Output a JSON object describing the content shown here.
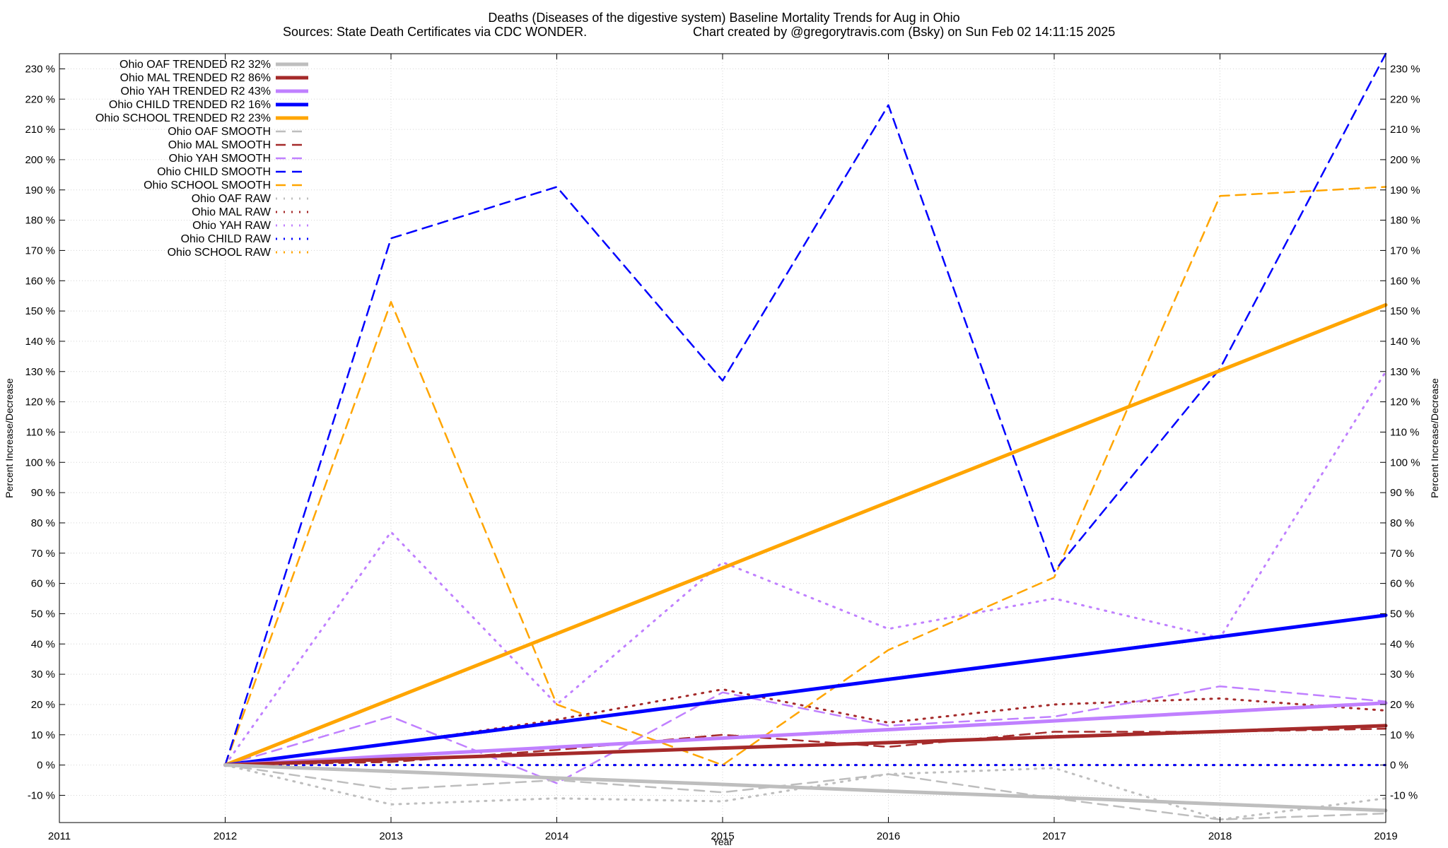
{
  "chart_data": {
    "type": "line",
    "title": "Deaths (Diseases of the digestive system)  Baseline Mortality Trends for Aug in Ohio",
    "subtitle_left": "Sources: State Death Certificates via CDC WONDER.",
    "subtitle_right": "Chart created by @gregorytravis.com (Bsky) on Sun Feb 02 14:11:15 2025",
    "xlabel": "Year",
    "ylabel": "Percent Increase/Decrease",
    "y2label": "Percent Increase/Decrease",
    "xlim": [
      2011,
      2019
    ],
    "ylim": [
      -19,
      235
    ],
    "x_ticks": [
      "2011",
      "2012",
      "2013",
      "2014",
      "2015",
      "2016",
      "2017",
      "2018",
      "2019"
    ],
    "y_ticks": [
      "-10 %",
      "0 %",
      "10 %",
      "20 %",
      "30 %",
      "40 %",
      "50 %",
      "60 %",
      "70 %",
      "80 %",
      "90 %",
      "100 %",
      "110 %",
      "120 %",
      "130 %",
      "140 %",
      "150 %",
      "160 %",
      "170 %",
      "180 %",
      "190 %",
      "200 %",
      "210 %",
      "220 %",
      "230 %"
    ],
    "grid": true,
    "legend_position": "top-left",
    "x": [
      2012,
      2013,
      2014,
      2015,
      2016,
      2017,
      2018,
      2019
    ],
    "series": [
      {
        "name": "Ohio OAF TRENDED R2  32%",
        "style": "trend",
        "color": "#bebebe",
        "values": [
          0,
          -2.1,
          -4.3,
          -6.4,
          -8.6,
          -10.7,
          -12.9,
          -15.0
        ],
        "legend": "Ohio OAF TRENDED R2  32%"
      },
      {
        "name": "Ohio MAL TRENDED R2  86%",
        "style": "trend",
        "color": "#a52a2a",
        "values": [
          0,
          1.9,
          3.7,
          5.6,
          7.4,
          9.3,
          11.1,
          13.0
        ]
      },
      {
        "name": "Ohio YAH TRENDED R2  43%",
        "style": "trend",
        "color": "#c080ff",
        "values": [
          0,
          3.0,
          5.9,
          8.9,
          11.7,
          14.6,
          17.6,
          20.5
        ]
      },
      {
        "name": "Ohio CHILD TRENDED R2  16%",
        "style": "trend",
        "color": "#0000ff",
        "values": [
          0,
          7.1,
          14.1,
          21.2,
          28.3,
          35.3,
          42.4,
          49.5
        ]
      },
      {
        "name": "Ohio SCHOOL TRENDED R2  23%",
        "style": "trend",
        "color": "#ffa500",
        "values": [
          0,
          21.7,
          43.4,
          65.1,
          86.9,
          108.6,
          130.3,
          152.0
        ]
      },
      {
        "name": "Ohio OAF SMOOTH",
        "style": "smooth",
        "color": "#bebebe",
        "values": [
          0,
          -8,
          -5,
          -9,
          -3,
          -11,
          -18,
          -16
        ]
      },
      {
        "name": "Ohio MAL SMOOTH",
        "style": "smooth",
        "color": "#a52a2a",
        "values": [
          0,
          1,
          5,
          10,
          6,
          11,
          11,
          12
        ]
      },
      {
        "name": "Ohio YAH SMOOTH",
        "style": "smooth",
        "color": "#c080ff",
        "values": [
          0,
          16,
          -6,
          24,
          13,
          16,
          26,
          21
        ]
      },
      {
        "name": "Ohio CHILD SMOOTH",
        "style": "smooth",
        "color": "#0000ff",
        "values": [
          0,
          174,
          191,
          127,
          218,
          64,
          131,
          235
        ]
      },
      {
        "name": "Ohio SCHOOL SMOOTH",
        "style": "smooth",
        "color": "#ffa500",
        "values": [
          0,
          153,
          20,
          0,
          38,
          62,
          188,
          191
        ]
      },
      {
        "name": "Ohio OAF RAW",
        "style": "raw",
        "color": "#bebebe",
        "values": [
          0,
          -13,
          -11,
          -12,
          -3,
          -1,
          -18,
          -11
        ]
      },
      {
        "name": "Ohio MAL RAW",
        "style": "raw",
        "color": "#a52a2a",
        "values": [
          0,
          7,
          15,
          25,
          14,
          20,
          22,
          18
        ]
      },
      {
        "name": "Ohio YAH RAW",
        "style": "raw",
        "color": "#c080ff",
        "values": [
          0,
          77,
          20,
          67,
          45,
          55,
          42,
          130
        ]
      },
      {
        "name": "Ohio CHILD RAW",
        "style": "raw",
        "color": "#0000ff",
        "values": [
          0,
          0,
          0,
          0,
          0,
          0,
          0,
          0
        ]
      },
      {
        "name": "Ohio SCHOOL RAW",
        "style": "raw",
        "color": "#ffa500",
        "values": [
          0,
          0,
          0,
          0,
          0,
          0,
          0,
          0
        ]
      }
    ]
  }
}
